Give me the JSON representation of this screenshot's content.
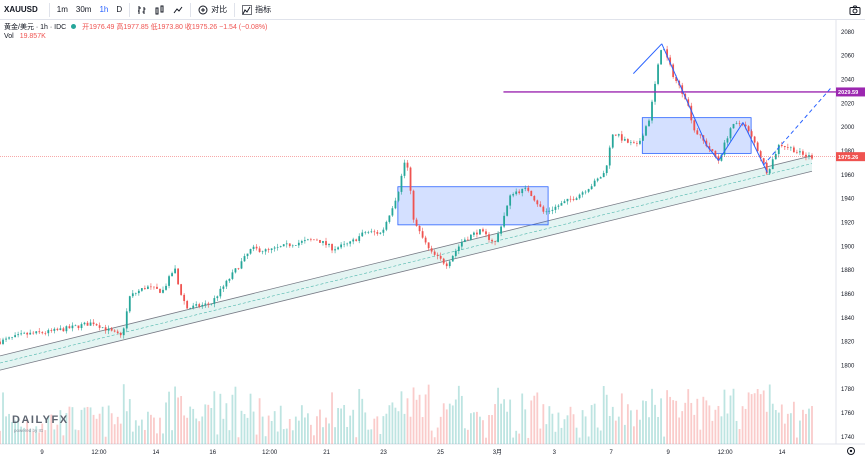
{
  "toolbar": {
    "symbol": "XAUUSD",
    "intervals": [
      "1m",
      "30m",
      "1h",
      "D"
    ],
    "active_interval": "1h",
    "indicators_label": "指标",
    "compare_label": "对比"
  },
  "legend": {
    "title": "黄金/美元 · 1h · IDC",
    "ohlc": "开1976.49 高1977.85 低1973.80 收1975.26 −1.54 (−0.08%)",
    "vol_label": "Vol",
    "vol_value": "19.857K"
  },
  "watermark": {
    "brand": "DAILYFX",
    "sub": "powered by IG"
  },
  "chart_data": {
    "type": "candlestick",
    "y_axis_ticks": [
      1740,
      1760,
      1780,
      1800,
      1820,
      1840,
      1860,
      1880,
      1900,
      1920,
      1940,
      1960,
      1980,
      2000,
      2020,
      2040,
      2060,
      2080
    ],
    "x_axis_ticks": [
      "9",
      "12:00",
      "14",
      "16",
      "12:00",
      "21",
      "23",
      "25",
      "3月",
      "3",
      "7",
      "9",
      "12:00",
      "14"
    ],
    "ylim": [
      1734,
      2090
    ],
    "current_price": "1975.26",
    "resistance_label": "2029.59",
    "price_path": [
      {
        "t": 0.0,
        "p": 1820
      },
      {
        "t": 0.03,
        "p": 1826
      },
      {
        "t": 0.06,
        "p": 1828
      },
      {
        "t": 0.09,
        "p": 1832
      },
      {
        "t": 0.115,
        "p": 1836
      },
      {
        "t": 0.135,
        "p": 1829
      },
      {
        "t": 0.15,
        "p": 1824
      },
      {
        "t": 0.16,
        "p": 1858
      },
      {
        "t": 0.18,
        "p": 1866
      },
      {
        "t": 0.2,
        "p": 1862
      },
      {
        "t": 0.215,
        "p": 1882
      },
      {
        "t": 0.22,
        "p": 1866
      },
      {
        "t": 0.23,
        "p": 1848
      },
      {
        "t": 0.26,
        "p": 1852
      },
      {
        "t": 0.29,
        "p": 1880
      },
      {
        "t": 0.31,
        "p": 1898
      },
      {
        "t": 0.33,
        "p": 1896
      },
      {
        "t": 0.36,
        "p": 1902
      },
      {
        "t": 0.39,
        "p": 1906
      },
      {
        "t": 0.41,
        "p": 1898
      },
      {
        "t": 0.43,
        "p": 1902
      },
      {
        "t": 0.45,
        "p": 1912
      },
      {
        "t": 0.47,
        "p": 1911
      },
      {
        "t": 0.49,
        "p": 1945
      },
      {
        "t": 0.5,
        "p": 1976
      },
      {
        "t": 0.51,
        "p": 1920
      },
      {
        "t": 0.53,
        "p": 1895
      },
      {
        "t": 0.55,
        "p": 1885
      },
      {
        "t": 0.57,
        "p": 1905
      },
      {
        "t": 0.59,
        "p": 1913
      },
      {
        "t": 0.61,
        "p": 1903
      },
      {
        "t": 0.63,
        "p": 1945
      },
      {
        "t": 0.65,
        "p": 1948
      },
      {
        "t": 0.67,
        "p": 1928
      },
      {
        "t": 0.69,
        "p": 1935
      },
      {
        "t": 0.71,
        "p": 1942
      },
      {
        "t": 0.73,
        "p": 1952
      },
      {
        "t": 0.745,
        "p": 1962
      },
      {
        "t": 0.755,
        "p": 1996
      },
      {
        "t": 0.77,
        "p": 1988
      },
      {
        "t": 0.785,
        "p": 1984
      },
      {
        "t": 0.8,
        "p": 2008
      },
      {
        "t": 0.815,
        "p": 2070
      },
      {
        "t": 0.83,
        "p": 2042
      },
      {
        "t": 0.845,
        "p": 2024
      },
      {
        "t": 0.855,
        "p": 1998
      },
      {
        "t": 0.87,
        "p": 1985
      },
      {
        "t": 0.885,
        "p": 1972
      },
      {
        "t": 0.9,
        "p": 2000
      },
      {
        "t": 0.915,
        "p": 2004
      },
      {
        "t": 0.93,
        "p": 1986
      },
      {
        "t": 0.945,
        "p": 1962
      },
      {
        "t": 0.96,
        "p": 1986
      },
      {
        "t": 0.975,
        "p": 1982
      },
      {
        "t": 0.99,
        "p": 1976
      },
      {
        "t": 1.0,
        "p": 1975.26
      }
    ],
    "rectangles": [
      {
        "t0": 0.49,
        "t1": 0.675,
        "p0": 1918,
        "p1": 1950
      },
      {
        "t0": 0.791,
        "t1": 0.925,
        "p0": 1978,
        "p1": 2008
      }
    ],
    "resistance_line": {
      "t0": 0.62,
      "t1": 1.0,
      "p": 2029.59
    },
    "channel": {
      "t0": 0.0,
      "t1": 1.0,
      "upper0": 1808,
      "upper1": 1976,
      "lower0": 1796,
      "lower1": 1963
    }
  }
}
